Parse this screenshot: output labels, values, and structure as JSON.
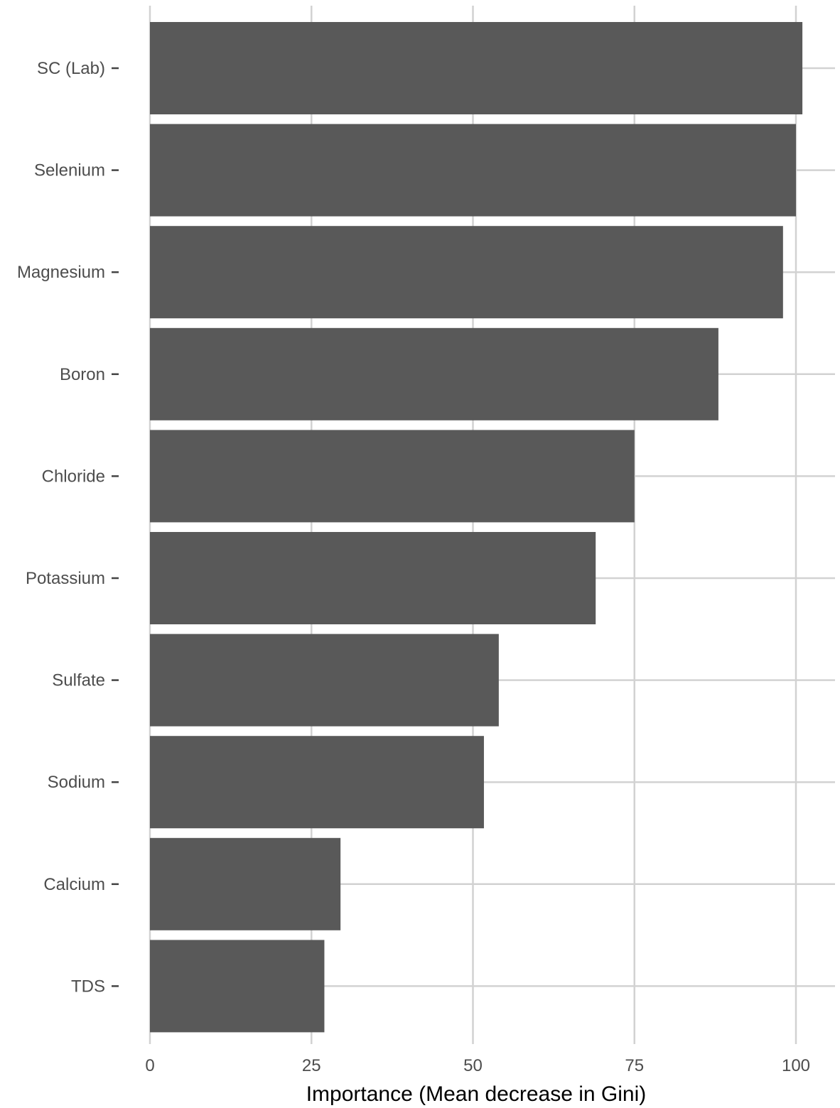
{
  "chart_data": {
    "type": "bar",
    "orientation": "horizontal",
    "categories": [
      "SC (Lab)",
      "Selenium",
      "Magnesium",
      "Boron",
      "Chloride",
      "Potassium",
      "Sulfate",
      "Sodium",
      "Calcium",
      "TDS"
    ],
    "values": [
      101,
      100,
      98,
      88,
      75,
      69,
      54,
      51.7,
      29.5,
      27
    ],
    "title": "",
    "xlabel": "Importance (Mean decrease in Gini)",
    "ylabel": "",
    "xlim": [
      0,
      106
    ],
    "xticks": [
      0,
      25,
      50,
      75,
      100
    ],
    "xtick_labels": [
      "0",
      "25",
      "50",
      "75",
      "100"
    ],
    "grid": true,
    "legend": "none",
    "colors": {
      "bar": "#595959",
      "grid": "#d2d2d2",
      "label": "#4d4d4d",
      "background": "#ffffff"
    }
  }
}
